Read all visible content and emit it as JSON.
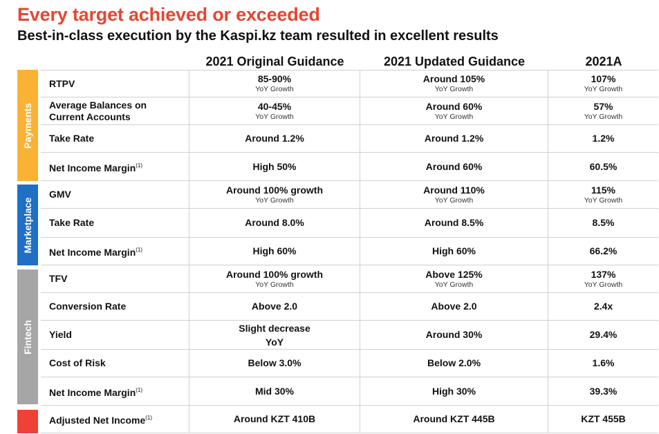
{
  "header": {
    "title": "Every target achieved or exceeded",
    "subtitle": "Best-in-class execution by the Kaspi.kz team resulted in excellent results"
  },
  "columns": [
    "2021 Original Guidance",
    "2021 Updated Guidance",
    "2021A"
  ],
  "colors": {
    "payments": "#f9b233",
    "marketplace": "#1f6fc5",
    "fintech": "#a6a6a6",
    "net_income": "#ef4136",
    "title": "#e8452f"
  },
  "sections": [
    {
      "name": "Payments",
      "rows": [
        {
          "label": "RTPV",
          "note": "",
          "cells": [
            {
              "main": "85-90%",
              "sub": "YoY Growth"
            },
            {
              "main": "Around 105%",
              "sub": "YoY Growth"
            },
            {
              "main": "107%",
              "sub": "YoY Growth"
            }
          ]
        },
        {
          "label": "Average Balances on Current Accounts",
          "note": "",
          "cells": [
            {
              "main": "40-45%",
              "sub": "YoY Growth"
            },
            {
              "main": "Around 60%",
              "sub": "YoY Growth"
            },
            {
              "main": "57%",
              "sub": "YoY Growth"
            }
          ]
        },
        {
          "label": "Take Rate",
          "note": "",
          "cells": [
            {
              "main": "Around 1.2%",
              "sub": ""
            },
            {
              "main": "Around 1.2%",
              "sub": ""
            },
            {
              "main": "1.2%",
              "sub": ""
            }
          ]
        },
        {
          "label": "Net Income Margin",
          "note": "(1)",
          "cells": [
            {
              "main": "High 50%",
              "sub": ""
            },
            {
              "main": "Around 60%",
              "sub": ""
            },
            {
              "main": "60.5%",
              "sub": ""
            }
          ]
        }
      ]
    },
    {
      "name": "Marketplace",
      "rows": [
        {
          "label": "GMV",
          "note": "",
          "cells": [
            {
              "main": "Around 100% growth",
              "sub": "YoY Growth"
            },
            {
              "main": "Around 110%",
              "sub": "YoY Growth"
            },
            {
              "main": "115%",
              "sub": "YoY Growth"
            }
          ]
        },
        {
          "label": "Take Rate",
          "note": "",
          "cells": [
            {
              "main": "Around 8.0%",
              "sub": ""
            },
            {
              "main": "Around 8.5%",
              "sub": ""
            },
            {
              "main": "8.5%",
              "sub": ""
            }
          ]
        },
        {
          "label": "Net Income Margin",
          "note": "(1)",
          "cells": [
            {
              "main": "High 60%",
              "sub": ""
            },
            {
              "main": "High 60%",
              "sub": ""
            },
            {
              "main": "66.2%",
              "sub": ""
            }
          ]
        }
      ]
    },
    {
      "name": "Fintech",
      "rows": [
        {
          "label": "TFV",
          "note": "",
          "cells": [
            {
              "main": "Around 100% growth",
              "sub": "YoY Growth"
            },
            {
              "main": "Above 125%",
              "sub": "YoY Growth"
            },
            {
              "main": "137%",
              "sub": "YoY Growth"
            }
          ]
        },
        {
          "label": "Conversion Rate",
          "note": "",
          "cells": [
            {
              "main": "Above 2.0",
              "sub": ""
            },
            {
              "main": "Above 2.0",
              "sub": ""
            },
            {
              "main": "2.4x",
              "sub": ""
            }
          ]
        },
        {
          "label": "Yield",
          "note": "",
          "cells": [
            {
              "main": "Slight decrease YoY",
              "sub": ""
            },
            {
              "main": "Around 30%",
              "sub": ""
            },
            {
              "main": "29.4%",
              "sub": ""
            }
          ]
        },
        {
          "label": "Cost of Risk",
          "note": "",
          "cells": [
            {
              "main": "Below 3.0%",
              "sub": ""
            },
            {
              "main": "Below 2.0%",
              "sub": ""
            },
            {
              "main": "1.6%",
              "sub": ""
            }
          ]
        },
        {
          "label": "Net Income Margin",
          "note": "(1)",
          "cells": [
            {
              "main": "Mid 30%",
              "sub": ""
            },
            {
              "main": "High 30%",
              "sub": ""
            },
            {
              "main": "39.3%",
              "sub": ""
            }
          ]
        }
      ]
    },
    {
      "name": "",
      "rows": [
        {
          "label": "Adjusted Net Income",
          "note": "(1)",
          "cells": [
            {
              "main": "Around KZT 410B",
              "sub": ""
            },
            {
              "main": "Around KZT 445B",
              "sub": ""
            },
            {
              "main": "KZT 455B",
              "sub": ""
            }
          ]
        }
      ]
    }
  ]
}
